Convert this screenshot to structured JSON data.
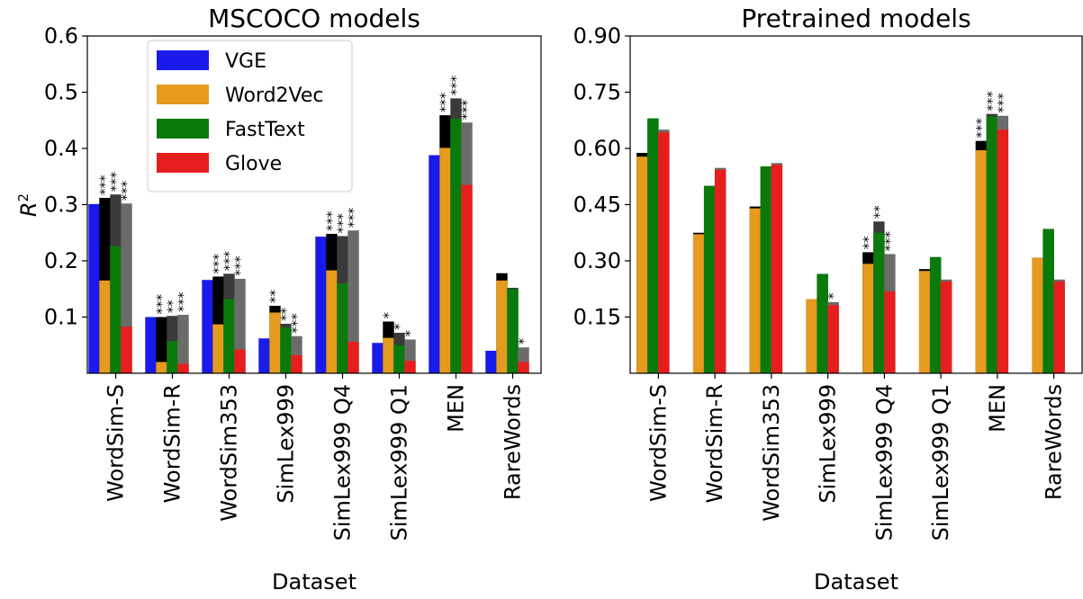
{
  "chart_data": [
    {
      "type": "bar",
      "title": "MSCOCO models",
      "xlabel": "Dataset",
      "ylabel": "R",
      "ylabel_superscript": "2",
      "ylim": [
        0.0,
        0.6
      ],
      "yticks": [
        0.1,
        0.2,
        0.3,
        0.4,
        0.5,
        0.6
      ],
      "ytick_labels": [
        "0.1",
        "0.2",
        "0.3",
        "0.4",
        "0.5",
        "0.6"
      ],
      "categories": [
        "WordSim-S",
        "WordSim-R",
        "WordSim353",
        "SimLex999",
        "SimLex999 Q4",
        "SimLex999 Q1",
        "MEN",
        "RareWords"
      ],
      "legend": {
        "position": "upper-left",
        "entries": [
          {
            "name": "VGE",
            "color": "#1a1aeb"
          },
          {
            "name": "Word2Vec",
            "color": "#e69a1e"
          },
          {
            "name": "FastText",
            "color": "#0a7a0a"
          },
          {
            "name": "Glove",
            "color": "#e61e1e"
          }
        ]
      },
      "series": [
        {
          "name": "VGE",
          "color": "#1a1aeb",
          "values": [
            0.301,
            0.1,
            0.166,
            0.062,
            0.243,
            0.054,
            0.388,
            0.04
          ]
        },
        {
          "name": "Word2Vec",
          "color": "#e69a1e",
          "values": [
            0.165,
            0.02,
            0.087,
            0.108,
            0.183,
            0.063,
            0.401,
            0.165
          ]
        },
        {
          "name": "FastText",
          "color": "#0a7a0a",
          "values": [
            0.226,
            0.057,
            0.132,
            0.082,
            0.16,
            0.05,
            0.453,
            0.15
          ]
        },
        {
          "name": "Glove",
          "color": "#e61e1e",
          "values": [
            0.083,
            0.017,
            0.042,
            0.032,
            0.056,
            0.022,
            0.335,
            0.02
          ]
        }
      ],
      "combined": [
        {
          "series": "Word2Vec",
          "color": "#000000",
          "values": [
            0.312,
            0.1,
            0.172,
            0.12,
            0.248,
            0.092,
            0.459,
            0.178
          ]
        },
        {
          "series": "FastText",
          "color": "#3a3a3a",
          "values": [
            0.318,
            0.102,
            0.177,
            0.088,
            0.244,
            0.072,
            0.489,
            0.152
          ]
        },
        {
          "series": "Glove",
          "color": "#6b6b6b",
          "values": [
            0.302,
            0.104,
            0.168,
            0.066,
            0.254,
            0.06,
            0.446,
            0.046
          ]
        }
      ],
      "significance": {
        "Word2Vec": [
          "***",
          "***",
          "***",
          "**",
          "***",
          "*",
          "***",
          ""
        ],
        "FastText": [
          "***",
          "**",
          "***",
          "**",
          "***",
          "*",
          "***",
          ""
        ],
        "Glove": [
          "***",
          "***",
          "***",
          "***",
          "***",
          "*",
          "***",
          "*"
        ]
      }
    },
    {
      "type": "bar",
      "title": "Pretrained models",
      "xlabel": "Dataset",
      "ylabel": "",
      "ylim": [
        0.0,
        0.9
      ],
      "yticks": [
        0.15,
        0.3,
        0.45,
        0.6,
        0.75,
        0.9
      ],
      "ytick_labels": [
        "0.15",
        "0.30",
        "0.45",
        "0.60",
        "0.75",
        "0.90"
      ],
      "categories": [
        "WordSim-S",
        "WordSim-R",
        "WordSim353",
        "SimLex999",
        "SimLex999 Q4",
        "SimLex999 Q1",
        "MEN",
        "RareWords"
      ],
      "series": [
        {
          "name": "Word2Vec",
          "color": "#e69a1e",
          "values": [
            0.578,
            0.371,
            0.44,
            0.198,
            0.292,
            0.273,
            0.595,
            0.308
          ]
        },
        {
          "name": "FastText",
          "color": "#0a7a0a",
          "values": [
            0.68,
            0.5,
            0.552,
            0.265,
            0.375,
            0.31,
            0.685,
            0.385
          ]
        },
        {
          "name": "Glove",
          "color": "#e61e1e",
          "values": [
            0.643,
            0.543,
            0.556,
            0.182,
            0.218,
            0.245,
            0.65,
            0.245
          ]
        }
      ],
      "combined": [
        {
          "series": "Word2Vec",
          "color": "#000000",
          "values": [
            0.588,
            0.375,
            0.445,
            0.198,
            0.323,
            0.278,
            0.62,
            0.308
          ]
        },
        {
          "series": "FastText",
          "color": "#3a3a3a",
          "values": [
            0.68,
            0.5,
            0.552,
            0.265,
            0.405,
            0.31,
            0.692,
            0.385
          ]
        },
        {
          "series": "Glove",
          "color": "#6b6b6b",
          "values": [
            0.65,
            0.548,
            0.561,
            0.19,
            0.318,
            0.25,
            0.687,
            0.25
          ]
        }
      ],
      "significance": {
        "Word2Vec": [
          "",
          "",
          "",
          "",
          "**",
          "",
          "***",
          ""
        ],
        "FastText": [
          "",
          "",
          "",
          "",
          "**",
          "",
          "***",
          ""
        ],
        "Glove": [
          "",
          "",
          "",
          "*",
          "***",
          "",
          "***",
          ""
        ]
      }
    }
  ]
}
